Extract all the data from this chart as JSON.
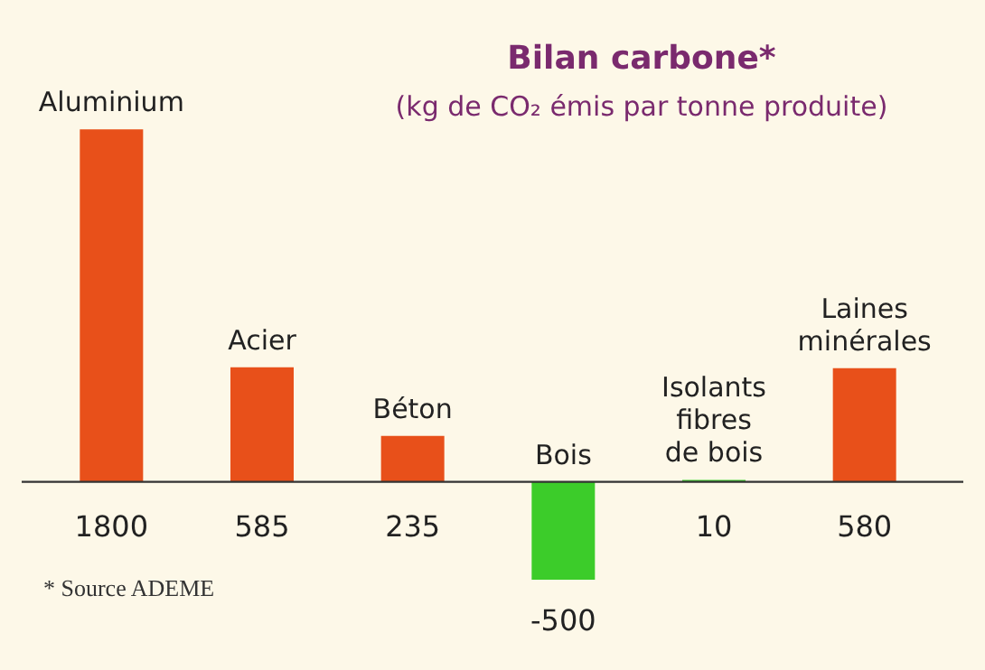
{
  "chart_data": {
    "type": "bar",
    "title": "Bilan carbone*",
    "subtitle": "(kg de CO₂ émis par tonne produite)",
    "categories": [
      "Aluminium",
      "Acier",
      "Béton",
      "Bois",
      "Isolants\nfibres\nde bois",
      "Laines\nminérales"
    ],
    "values": [
      1800,
      585,
      235,
      -500,
      10,
      580
    ],
    "colors": [
      "#e8501a",
      "#e8501a",
      "#e8501a",
      "#3ccc2a",
      "#3ccc2a",
      "#e8501a"
    ],
    "data_labels": true,
    "annotations": [
      "* Source ADEME"
    ]
  }
}
